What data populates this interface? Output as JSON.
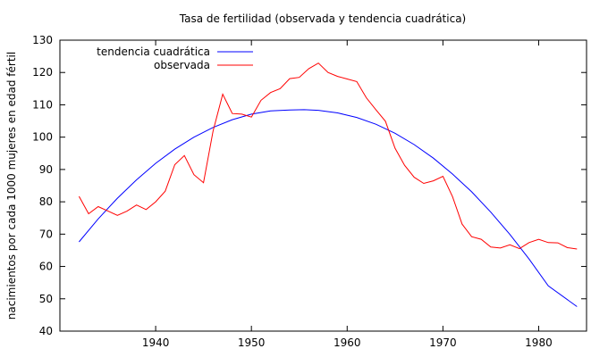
{
  "chart_data": {
    "type": "line",
    "title": "Tasa de fertilidad (observada y tendencia cuadrática)",
    "xlabel": "",
    "ylabel": "nacimientos por cada 1000 mujeres en edad fértil",
    "xlim": [
      1930,
      1985
    ],
    "ylim": [
      40,
      130
    ],
    "xticks": [
      1940,
      1950,
      1960,
      1970,
      1980
    ],
    "yticks": [
      40,
      50,
      60,
      70,
      80,
      90,
      100,
      110,
      120,
      130
    ],
    "grid": false,
    "legend_position": "top-left",
    "series": [
      {
        "name": "tendencia cuadrática",
        "color": "#0000ff",
        "x": [
          1932,
          1934,
          1936,
          1938,
          1940,
          1942,
          1944,
          1946,
          1948,
          1950,
          1952,
          1954,
          1955.5,
          1957,
          1959,
          1961,
          1963,
          1965,
          1967,
          1969,
          1971,
          1973,
          1975,
          1977,
          1979,
          1981,
          1984
        ],
        "y": [
          67.6,
          74.7,
          81.1,
          86.8,
          91.9,
          96.3,
          100.0,
          103.0,
          105.4,
          107.1,
          108.1,
          108.4,
          108.5,
          108.3,
          107.5,
          106.1,
          104.0,
          101.2,
          97.7,
          93.5,
          88.6,
          83.1,
          76.8,
          69.9,
          62.3,
          54.0,
          47.6
        ]
      },
      {
        "name": "observada",
        "color": "#ff0000",
        "x": [
          1932,
          1933,
          1934,
          1935,
          1936,
          1937,
          1938,
          1939,
          1940,
          1941,
          1942,
          1943,
          1944,
          1945,
          1946,
          1947,
          1948,
          1949,
          1950,
          1951,
          1952,
          1953,
          1954,
          1955,
          1956,
          1957,
          1958,
          1959,
          1960,
          1961,
          1962,
          1963,
          1964,
          1965,
          1966,
          1967,
          1968,
          1969,
          1970,
          1971,
          1972,
          1973,
          1974,
          1975,
          1976,
          1977,
          1978,
          1979,
          1980,
          1981,
          1982,
          1983,
          1984
        ],
        "y": [
          81.7,
          76.3,
          78.5,
          77.2,
          75.8,
          77.1,
          79.0,
          77.6,
          80.0,
          83.3,
          91.5,
          94.3,
          88.4,
          85.9,
          101.9,
          113.3,
          107.3,
          107.1,
          106.2,
          111.4,
          113.8,
          115.0,
          118.1,
          118.5,
          121.2,
          122.9,
          120.0,
          118.8,
          118.0,
          117.2,
          112.2,
          108.5,
          104.9,
          96.6,
          91.3,
          87.6,
          85.7,
          86.5,
          87.9,
          81.6,
          73.1,
          69.2,
          68.4,
          66.0,
          65.7,
          66.7,
          65.5,
          67.4,
          68.4,
          67.4,
          67.3,
          65.8,
          65.4
        ]
      }
    ]
  }
}
